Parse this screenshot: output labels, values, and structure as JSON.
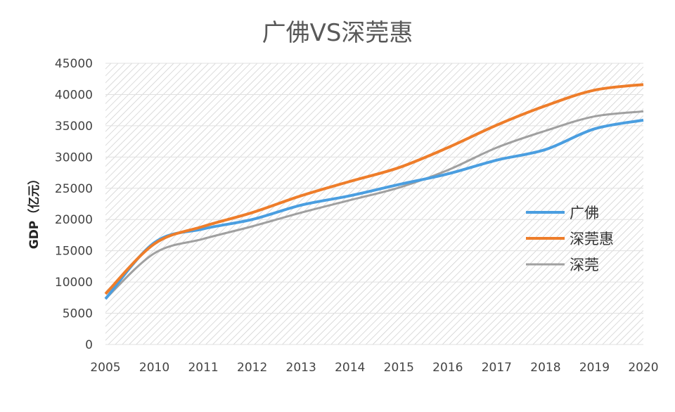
{
  "chart_data": {
    "type": "line",
    "title": "广佛VS深莞惠",
    "xlabel": "",
    "ylabel": "GDP（亿元）",
    "categories": [
      "2005",
      "2010",
      "2011",
      "2012",
      "2013",
      "2014",
      "2015",
      "2016",
      "2017",
      "2018",
      "2019",
      "2020"
    ],
    "ylim": [
      0,
      45000
    ],
    "yticks": [
      "0",
      "5000",
      "10000",
      "15000",
      "20000",
      "25000",
      "30000",
      "35000",
      "40000",
      "45000"
    ],
    "grid": true,
    "legend_position": "right",
    "series": [
      {
        "name": "广佛",
        "color": "#4a9ee0",
        "values": [
          7300,
          16300,
          18500,
          20000,
          22300,
          23800,
          25600,
          27300,
          29500,
          31200,
          34500,
          35900
        ]
      },
      {
        "name": "深莞惠",
        "color": "#ee7d2a",
        "values": [
          8100,
          16100,
          18900,
          21100,
          23800,
          26100,
          28300,
          31500,
          35100,
          38200,
          40700,
          41600
        ]
      },
      {
        "name": "深莞",
        "color": "#a0a0a0",
        "values": [
          7300,
          14600,
          16900,
          18900,
          21100,
          23100,
          25100,
          27900,
          31500,
          34200,
          36500,
          37300
        ]
      }
    ]
  }
}
